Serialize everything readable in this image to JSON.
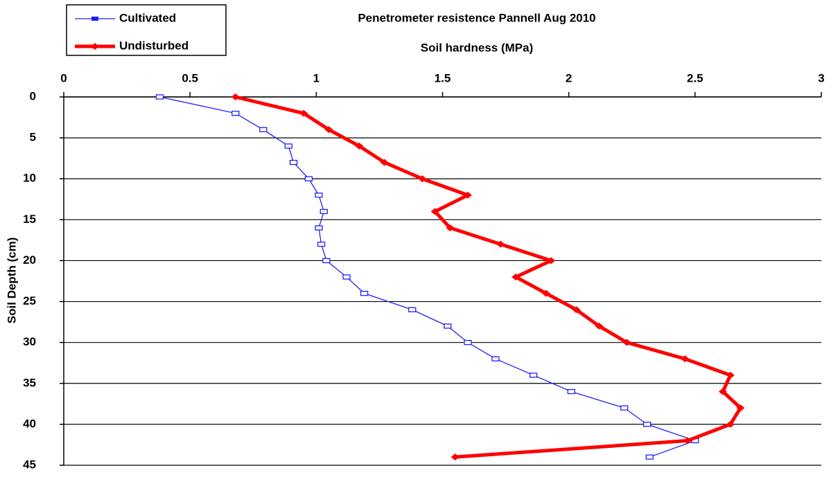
{
  "chart_data": {
    "type": "line",
    "title": "Penetrometer resistence Pannell Aug 2010",
    "x_label": "Soil hardness (MPa)",
    "y_label": "Soil Depth (cm)",
    "depth": [
      0,
      2,
      4,
      6,
      8,
      10,
      12,
      14,
      16,
      18,
      20,
      22,
      24,
      26,
      28,
      30,
      32,
      34,
      36,
      38,
      40,
      42,
      44
    ],
    "series": [
      {
        "name": "Cultivated",
        "color": "#1f1fff",
        "values": [
          0.38,
          0.68,
          0.79,
          0.89,
          0.91,
          0.97,
          1.01,
          1.03,
          1.01,
          1.02,
          1.04,
          1.12,
          1.19,
          1.38,
          1.52,
          1.6,
          1.71,
          1.86,
          2.01,
          2.22,
          2.31,
          2.5,
          2.32
        ]
      },
      {
        "name": "Undisturbed",
        "color": "#ff0000",
        "values": [
          0.68,
          0.95,
          1.05,
          1.17,
          1.27,
          1.42,
          1.6,
          1.47,
          1.53,
          1.73,
          1.93,
          1.79,
          1.91,
          2.03,
          2.12,
          2.23,
          2.46,
          2.64,
          2.61,
          2.68,
          2.64,
          2.47,
          1.55
        ]
      }
    ],
    "xlim": [
      0,
      3
    ],
    "xticks": [
      0,
      0.5,
      1,
      1.5,
      2,
      2.5,
      3
    ],
    "ylim": [
      0,
      45
    ],
    "yticks": [
      0,
      5,
      10,
      15,
      20,
      25,
      30,
      35,
      40,
      45
    ],
    "y_reversed": true,
    "grid": true,
    "legend": "top-left"
  }
}
